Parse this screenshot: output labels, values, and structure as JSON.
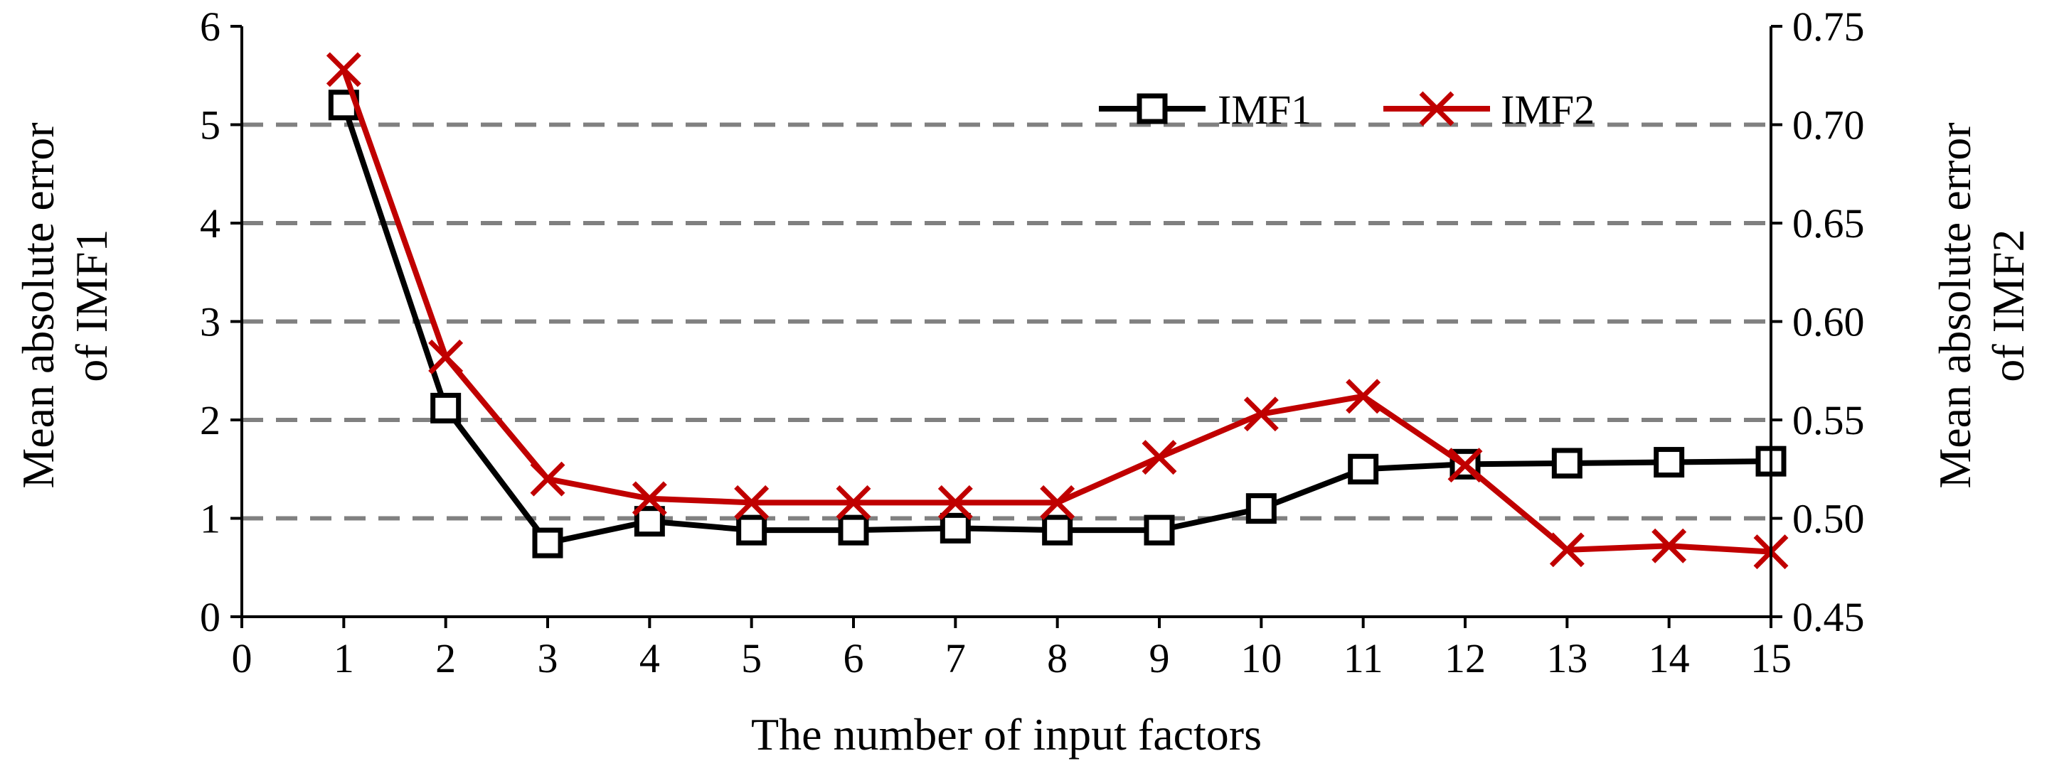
{
  "chart_data": {
    "type": "line",
    "xlabel": "The number of input factors",
    "ylabel_left": [
      "Mean absolute error",
      "of IMF1"
    ],
    "ylabel_right": [
      "Mean absolute error",
      "of IMF2"
    ],
    "x_ticks": [
      "0",
      "1",
      "2",
      "3",
      "4",
      "5",
      "6",
      "7",
      "8",
      "9",
      "10",
      "11",
      "12",
      "13",
      "14",
      "15"
    ],
    "y_left_ticks": [
      "0",
      "1",
      "2",
      "3",
      "4",
      "5",
      "6"
    ],
    "y_right_ticks": [
      "0.45",
      "0.50",
      "0.55",
      "0.60",
      "0.65",
      "0.70",
      "0.75"
    ],
    "xlim": [
      0,
      15
    ],
    "ylim_left": [
      0,
      6
    ],
    "ylim_right": [
      0.45,
      0.75
    ],
    "grid": "horizontal dashed",
    "legend": "top-right",
    "series": [
      {
        "name": "IMF1",
        "axis": "left",
        "marker": "square",
        "color": "#000000",
        "x": [
          1,
          2,
          3,
          4,
          5,
          6,
          7,
          8,
          9,
          10,
          11,
          12,
          13,
          14,
          15
        ],
        "values": [
          5.2,
          2.12,
          0.75,
          0.97,
          0.88,
          0.88,
          0.9,
          0.88,
          0.88,
          1.1,
          1.5,
          1.55,
          1.56,
          1.57,
          1.58
        ]
      },
      {
        "name": "IMF2",
        "axis": "right",
        "marker": "x",
        "color": "#C00000",
        "x": [
          1,
          2,
          3,
          4,
          5,
          6,
          7,
          8,
          9,
          10,
          11,
          12,
          13,
          14,
          15
        ],
        "values": [
          0.728,
          0.582,
          0.52,
          0.51,
          0.508,
          0.508,
          0.508,
          0.508,
          0.531,
          0.553,
          0.562,
          0.527,
          0.484,
          0.486,
          0.483
        ]
      }
    ]
  }
}
